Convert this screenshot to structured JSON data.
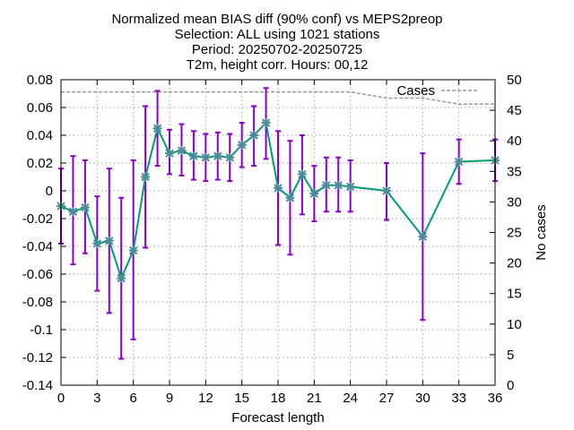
{
  "chart_data": {
    "type": "line",
    "title_lines": [
      "Normalized mean BIAS diff (90% conf) vs MEPS2preop",
      "Selection: ALL using  1021 stations",
      "Period: 20250702-20250725",
      "T2m, height corr.   Hours: 00,12"
    ],
    "xlabel": "Forecast length",
    "ylabel_right": "No cases",
    "xlim": [
      0,
      36
    ],
    "ylim": [
      -0.14,
      0.08
    ],
    "y2lim": [
      0,
      50
    ],
    "grid": true,
    "x_ticks": [
      0,
      3,
      6,
      9,
      12,
      15,
      18,
      21,
      24,
      27,
      30,
      33,
      36
    ],
    "y_ticks": [
      -0.14,
      -0.12,
      -0.1,
      -0.08,
      -0.06,
      -0.04,
      -0.02,
      0,
      0.02,
      0.04,
      0.06,
      0.08
    ],
    "y_tick_labels": [
      "-0.14",
      "-0.12",
      "-0.1",
      "-0.08",
      "-0.06",
      "-0.04",
      "-0.02",
      "0",
      "0.02",
      "0.04",
      "0.06",
      "0.08"
    ],
    "y2_ticks": [
      0,
      5,
      10,
      15,
      20,
      25,
      30,
      35,
      40,
      45,
      50
    ],
    "colors": {
      "line": "#009e73",
      "markers": "#4d8a9a",
      "errorbars": "#8b00c7",
      "cases": "#999999",
      "grid": "#a0a0a0"
    },
    "series": [
      {
        "x": [
          0,
          1,
          2,
          3,
          4,
          5,
          6,
          7,
          8,
          9,
          10,
          11,
          12,
          13,
          14,
          15,
          16,
          17,
          18,
          19,
          20,
          21,
          22,
          23,
          24,
          27,
          30,
          33,
          36
        ],
        "values": [
          -0.011,
          -0.015,
          -0.012,
          -0.038,
          -0.036,
          -0.063,
          -0.043,
          0.01,
          0.045,
          0.027,
          0.029,
          0.025,
          0.024,
          0.025,
          0.024,
          0.033,
          0.04,
          0.049,
          0.002,
          -0.005,
          0.012,
          -0.002,
          0.004,
          0.004,
          0.003,
          0.0,
          -0.033,
          0.021,
          0.022
        ],
        "err_low": [
          -0.038,
          -0.053,
          -0.045,
          -0.072,
          -0.088,
          -0.121,
          -0.107,
          -0.041,
          0.018,
          0.012,
          0.011,
          0.008,
          0.007,
          0.008,
          0.007,
          0.017,
          0.018,
          0.023,
          -0.039,
          -0.046,
          -0.017,
          -0.022,
          -0.015,
          -0.015,
          -0.015,
          -0.021,
          -0.093,
          0.005,
          0.007
        ],
        "err_high": [
          0.016,
          0.025,
          0.022,
          -0.004,
          0.016,
          -0.005,
          0.022,
          0.061,
          0.072,
          0.044,
          0.048,
          0.043,
          0.041,
          0.042,
          0.041,
          0.049,
          0.061,
          0.074,
          0.043,
          0.036,
          0.04,
          0.018,
          0.024,
          0.024,
          0.022,
          0.02,
          0.027,
          0.037,
          0.037
        ]
      }
    ],
    "cases_series": {
      "name": "Cases",
      "x": [
        0,
        3,
        6,
        9,
        12,
        15,
        18,
        21,
        24,
        27,
        30,
        33,
        36
      ],
      "values": [
        48,
        48,
        48,
        48,
        48,
        48,
        48,
        48,
        48,
        47,
        47,
        46,
        46
      ]
    },
    "legend": {
      "label": "Cases",
      "position": "top-right"
    }
  }
}
